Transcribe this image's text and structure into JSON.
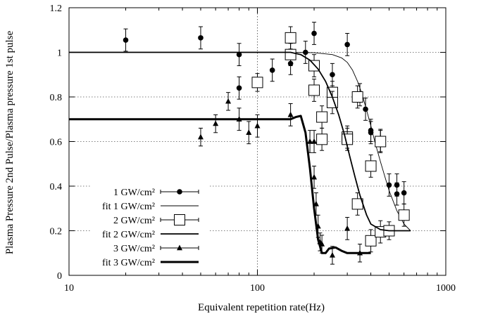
{
  "chart_data": {
    "type": "scatter",
    "title": "",
    "xlabel": "Equivalent repetition rate(Hz)",
    "ylabel": "Plasma Pressure 2nd Pulse/Plasma pressure 1st pulse",
    "xscale": "log",
    "xlim": [
      10,
      1000
    ],
    "ylim": [
      0,
      1.2
    ],
    "x_ticks": [
      10,
      100,
      1000
    ],
    "x_tick_labels": [
      "10",
      "100",
      "1000"
    ],
    "y_ticks": [
      0,
      0.2,
      0.4,
      0.6,
      0.8,
      1.0,
      1.2
    ],
    "y_tick_labels": [
      "0",
      "0.2",
      "0.4",
      "0.6",
      "0.8",
      "1",
      "1.2"
    ],
    "grid": true,
    "legend_position": "bottom-left",
    "series": [
      {
        "name": "1 GW/cm²",
        "kind": "points",
        "marker": "circle",
        "color": "#000000",
        "points": [
          {
            "x": 20,
            "y": 1.055,
            "err": 0.05
          },
          {
            "x": 50,
            "y": 1.065,
            "err": 0.05
          },
          {
            "x": 80,
            "y": 0.99,
            "err": 0.05
          },
          {
            "x": 80,
            "y": 0.84,
            "err": 0.05
          },
          {
            "x": 120,
            "y": 0.92,
            "err": 0.05
          },
          {
            "x": 150,
            "y": 0.95,
            "err": 0.05
          },
          {
            "x": 180,
            "y": 1.0,
            "err": 0.05
          },
          {
            "x": 200,
            "y": 1.085,
            "err": 0.05
          },
          {
            "x": 250,
            "y": 0.9,
            "err": 0.05
          },
          {
            "x": 300,
            "y": 1.035,
            "err": 0.05
          },
          {
            "x": 350,
            "y": 0.81,
            "err": 0.05
          },
          {
            "x": 375,
            "y": 0.745,
            "err": 0.05
          },
          {
            "x": 400,
            "y": 0.65,
            "err": 0.05
          },
          {
            "x": 400,
            "y": 0.64,
            "err": 0.05
          },
          {
            "x": 450,
            "y": 0.605,
            "err": 0.05
          },
          {
            "x": 500,
            "y": 0.405,
            "err": 0.05
          },
          {
            "x": 550,
            "y": 0.405,
            "err": 0.05
          },
          {
            "x": 550,
            "y": 0.365,
            "err": 0.05
          },
          {
            "x": 600,
            "y": 0.37,
            "err": 0.05
          }
        ]
      },
      {
        "name": "fit 1 GW/cm²",
        "kind": "line",
        "stroke": 0.9,
        "color": "#000000",
        "x": [
          10,
          100,
          150,
          200,
          250,
          280,
          300,
          320,
          340,
          360,
          380,
          400,
          420,
          450,
          480,
          500,
          550,
          600,
          650
        ],
        "y": [
          1.0,
          1.0,
          1.0,
          0.998,
          0.99,
          0.975,
          0.955,
          0.92,
          0.87,
          0.81,
          0.74,
          0.67,
          0.6,
          0.51,
          0.43,
          0.38,
          0.29,
          0.23,
          0.2
        ]
      },
      {
        "name": "2 GW/cm²",
        "kind": "points",
        "marker": "square",
        "color": "#000000",
        "points": [
          {
            "x": 100,
            "y": 0.865,
            "err": 0.04
          },
          {
            "x": 150,
            "y": 1.065,
            "err": 0.05
          },
          {
            "x": 150,
            "y": 0.99,
            "err": 0.05
          },
          {
            "x": 200,
            "y": 0.94,
            "err": 0.05
          },
          {
            "x": 200,
            "y": 0.83,
            "err": 0.05
          },
          {
            "x": 220,
            "y": 0.71,
            "err": 0.05
          },
          {
            "x": 220,
            "y": 0.61,
            "err": 0.05
          },
          {
            "x": 250,
            "y": 0.82,
            "err": 0.05
          },
          {
            "x": 250,
            "y": 0.775,
            "err": 0.05
          },
          {
            "x": 300,
            "y": 0.62,
            "err": 0.05
          },
          {
            "x": 300,
            "y": 0.61,
            "err": 0.05
          },
          {
            "x": 340,
            "y": 0.8,
            "err": 0.05
          },
          {
            "x": 340,
            "y": 0.32,
            "err": 0.05
          },
          {
            "x": 400,
            "y": 0.49,
            "err": 0.05
          },
          {
            "x": 400,
            "y": 0.155,
            "err": 0.05
          },
          {
            "x": 450,
            "y": 0.6,
            "err": 0.05
          },
          {
            "x": 450,
            "y": 0.195,
            "err": 0.05
          },
          {
            "x": 500,
            "y": 0.2,
            "err": 0.04
          },
          {
            "x": 600,
            "y": 0.27,
            "err": 0.05
          }
        ]
      },
      {
        "name": "fit 2 GW/cm²",
        "kind": "line",
        "stroke": 1.8,
        "color": "#000000",
        "x": [
          10,
          120,
          150,
          170,
          190,
          210,
          230,
          250,
          270,
          290,
          310,
          330,
          350,
          380,
          400,
          450,
          500,
          600,
          650
        ],
        "y": [
          1.0,
          1.0,
          1.0,
          0.99,
          0.965,
          0.925,
          0.87,
          0.8,
          0.72,
          0.63,
          0.53,
          0.44,
          0.36,
          0.27,
          0.23,
          0.205,
          0.2,
          0.2,
          0.2
        ]
      },
      {
        "name": "3 GW/cm²",
        "kind": "points",
        "marker": "triangle",
        "color": "#000000",
        "points": [
          {
            "x": 50,
            "y": 0.62,
            "err": 0.04
          },
          {
            "x": 60,
            "y": 0.68,
            "err": 0.04
          },
          {
            "x": 70,
            "y": 0.78,
            "err": 0.04
          },
          {
            "x": 80,
            "y": 0.7,
            "err": 0.05
          },
          {
            "x": 90,
            "y": 0.64,
            "err": 0.05
          },
          {
            "x": 100,
            "y": 0.67,
            "err": 0.05
          },
          {
            "x": 150,
            "y": 0.72,
            "err": 0.05
          },
          {
            "x": 190,
            "y": 0.6,
            "err": 0.05
          },
          {
            "x": 200,
            "y": 0.6,
            "err": 0.05
          },
          {
            "x": 200,
            "y": 0.44,
            "err": 0.05
          },
          {
            "x": 205,
            "y": 0.32,
            "err": 0.05
          },
          {
            "x": 210,
            "y": 0.22,
            "err": 0.05
          },
          {
            "x": 215,
            "y": 0.15,
            "err": 0.04
          },
          {
            "x": 220,
            "y": 0.14,
            "err": 0.04
          },
          {
            "x": 250,
            "y": 0.09,
            "err": 0.04
          },
          {
            "x": 300,
            "y": 0.21,
            "err": 0.05
          },
          {
            "x": 350,
            "y": 0.1,
            "err": 0.04
          }
        ]
      },
      {
        "name": "fit 3 GW/cm²",
        "kind": "line",
        "stroke": 3,
        "color": "#000000",
        "x": [
          10,
          100,
          150,
          160,
          170,
          180,
          190,
          200,
          210,
          220,
          230,
          240,
          260,
          280,
          300,
          350,
          400
        ],
        "y": [
          0.7,
          0.7,
          0.7,
          0.71,
          0.715,
          0.64,
          0.48,
          0.3,
          0.16,
          0.1,
          0.1,
          0.12,
          0.125,
          0.11,
          0.1,
          0.1,
          0.1
        ]
      }
    ]
  }
}
